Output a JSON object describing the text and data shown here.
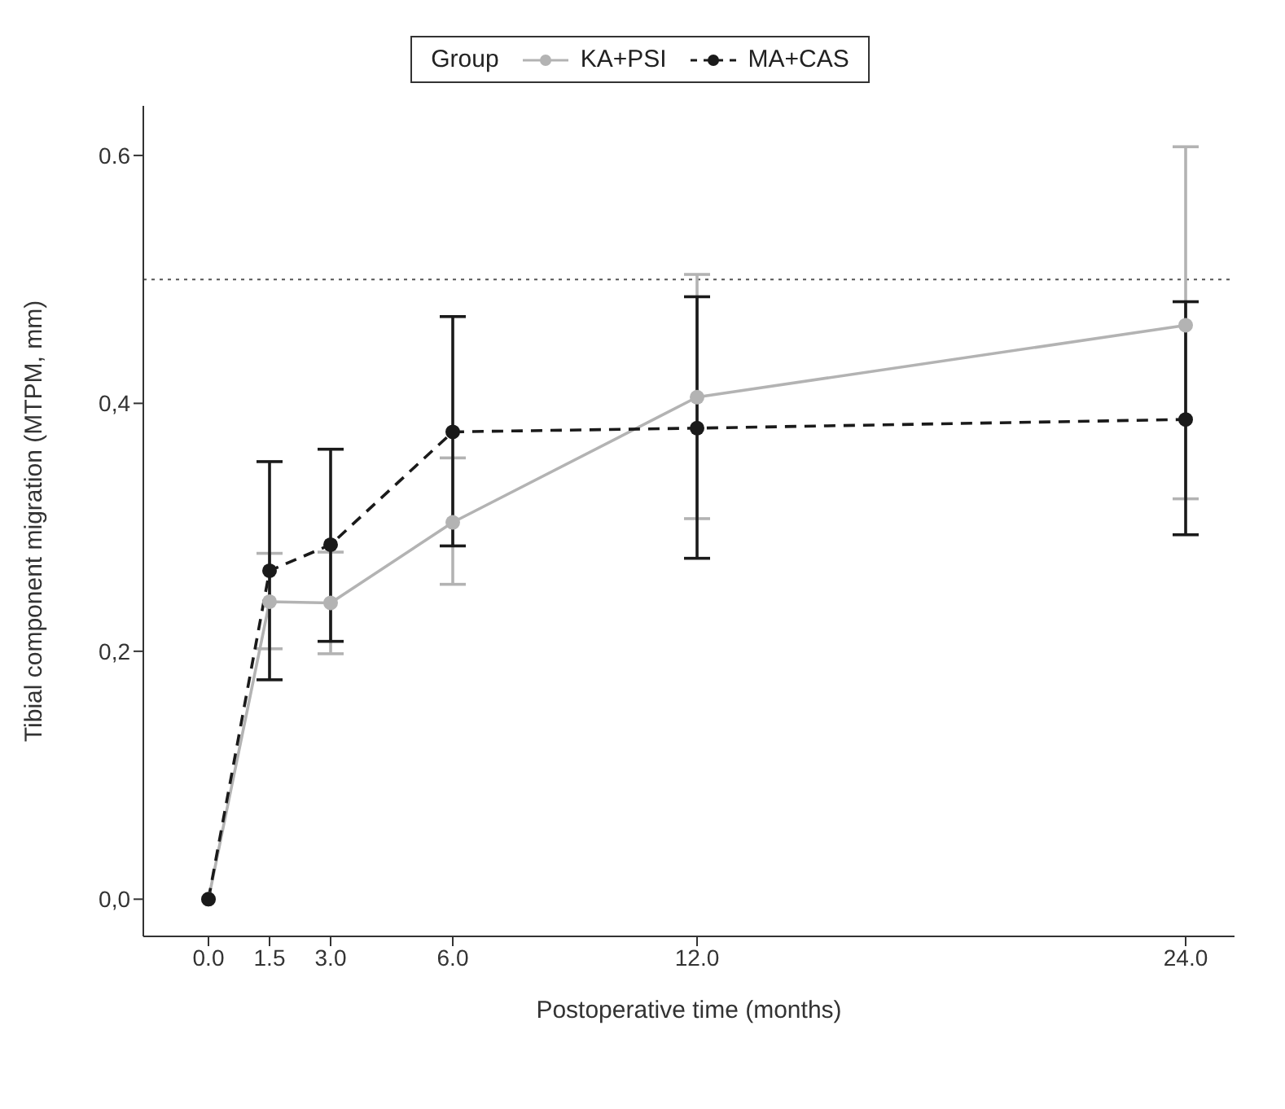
{
  "chart_data": {
    "type": "line",
    "xlabel": "Postoperative time (months)",
    "ylabel": "Tibial component migration (MTPM, mm)",
    "legend_title": "Group",
    "legend": "top",
    "marker": "circle",
    "x": [
      0,
      1.5,
      3,
      6,
      12,
      24
    ],
    "xlim": [
      -1.6,
      25.2
    ],
    "xticks": [
      {
        "value": 0,
        "label": "0.0"
      },
      1.5,
      {
        "value": 3,
        "label": "3.0"
      },
      {
        "value": 6,
        "label": "6.0"
      },
      {
        "value": 12,
        "label": "12.0"
      },
      {
        "value": 24,
        "label": "24.0"
      }
    ],
    "ylim": [
      -0.03,
      0.64
    ],
    "yticks": [
      {
        "value": 0,
        "label": "0,0"
      },
      {
        "value": 0.2,
        "label": "0,2"
      },
      {
        "value": 0.4,
        "label": "0,4"
      },
      0.6
    ],
    "series": [
      {
        "name": "KA+PSI",
        "color": "#b3b3b3",
        "line_style": "solid",
        "values": [
          0,
          0.24,
          0.239,
          0.304,
          0.405,
          0.463
        ],
        "errors": [
          null,
          [
            0.202,
            0.279
          ],
          [
            0.198,
            0.28
          ],
          [
            0.254,
            0.356
          ],
          [
            0.307,
            0.504
          ],
          [
            0.323,
            0.607
          ]
        ]
      },
      {
        "name": "MA+CAS",
        "color": "#1a1a1a",
        "line_style": "dashed",
        "values": [
          0,
          0.265,
          0.286,
          0.377,
          0.38,
          0.387
        ],
        "errors": [
          null,
          [
            0.177,
            0.353
          ],
          [
            0.208,
            0.363
          ],
          [
            0.285,
            0.47
          ],
          [
            0.275,
            0.486
          ],
          [
            0.294,
            0.482
          ]
        ]
      }
    ],
    "ref_lines": [
      {
        "axis": "y",
        "value": 0.5,
        "color": "#555555",
        "line_style": "dotted"
      }
    ]
  }
}
